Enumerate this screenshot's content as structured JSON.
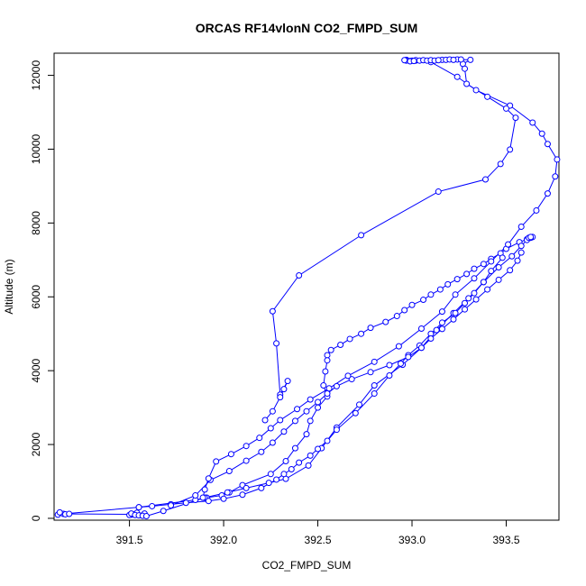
{
  "chart_data": {
    "type": "line",
    "title": "ORCAS RF14vlonN CO2_FMPD_SUM",
    "xlabel": "CO2_FMPD_SUM",
    "ylabel": "Altitude (m)",
    "xlim": [
      391.1,
      393.78
    ],
    "ylim": [
      -50,
      12600
    ],
    "xticks": [
      391.5,
      392.0,
      392.5,
      393.0,
      393.5
    ],
    "xtick_labels": [
      "391.5",
      "392.0",
      "392.5",
      "393.0",
      "393.5"
    ],
    "yticks": [
      0,
      2000,
      4000,
      6000,
      8000,
      10000,
      12000
    ],
    "ytick_labels": [
      "0",
      "2000",
      "4000",
      "6000",
      "8000",
      "10000",
      "12000"
    ],
    "color": "#0000ff",
    "marker": "open-circle",
    "series": [
      {
        "x": [
          393.64,
          393.63,
          393.61,
          393.57,
          393.5,
          393.47,
          393.42,
          393.38,
          393.33,
          393.29,
          393.24,
          393.19,
          393.15,
          393.1,
          393.06,
          393.0,
          392.96,
          392.92,
          392.86,
          392.78,
          392.73,
          392.67,
          392.62,
          392.57,
          392.55,
          392.55,
          392.54,
          392.53,
          392.55,
          392.5,
          392.46,
          392.44,
          392.38,
          392.33,
          392.25,
          392.1,
          392.03,
          391.99,
          391.91,
          391.85,
          391.55,
          391.15,
          391.12,
          391.13,
          391.16,
          391.18,
          391.52,
          391.58,
          391.54,
          391.51,
          391.5
        ],
        "y": [
          7620,
          7600,
          7560,
          7480,
          7300,
          7180,
          7030,
          6890,
          6760,
          6620,
          6480,
          6340,
          6200,
          6060,
          5920,
          5780,
          5640,
          5480,
          5320,
          5160,
          5000,
          4860,
          4700,
          4560,
          4420,
          4280,
          3980,
          3600,
          3300,
          3000,
          2640,
          2280,
          1900,
          1550,
          1200,
          900,
          700,
          620,
          560,
          500,
          300,
          120,
          100,
          160,
          110,
          120,
          110,
          130,
          150,
          100,
          90
        ]
      },
      {
        "x": [
          391.51,
          391.53,
          391.55,
          391.57,
          391.59,
          391.68,
          391.9,
          392.02,
          392.12,
          392.24,
          392.33,
          392.45,
          392.52,
          392.6,
          392.72,
          392.8,
          392.95,
          393.05,
          393.13,
          393.22,
          393.3,
          393.38,
          393.46,
          393.53,
          393.58,
          393.61,
          393.62,
          393.63
        ],
        "y": [
          130,
          90,
          80,
          70,
          60,
          200,
          560,
          700,
          820,
          960,
          1070,
          1430,
          1900,
          2460,
          3080,
          3600,
          4160,
          4620,
          5100,
          5560,
          5960,
          6400,
          6800,
          7100,
          7380,
          7540,
          7600,
          7620
        ]
      },
      {
        "x": [
          391.55,
          391.62,
          391.72,
          391.8,
          391.92,
          392.0,
          392.1,
          392.2,
          392.28,
          392.32,
          392.36,
          392.4,
          392.46,
          392.5,
          392.55,
          392.6,
          392.7,
          392.8,
          392.88,
          392.94,
          392.98,
          393.04,
          393.1,
          393.16,
          393.23,
          393.28,
          393.33,
          393.38,
          393.42,
          393.48
        ],
        "y": [
          300,
          330,
          380,
          420,
          470,
          530,
          640,
          820,
          1050,
          1200,
          1330,
          1510,
          1700,
          1880,
          2100,
          2400,
          2850,
          3380,
          3870,
          4190,
          4420,
          4680,
          5000,
          5300,
          5560,
          5830,
          6100,
          6400,
          6700,
          7060
        ]
      },
      {
        "x": [
          391.72,
          391.85,
          391.93,
          392.03,
          392.12,
          392.2,
          392.26,
          392.32,
          392.38,
          392.44,
          392.5,
          392.55,
          392.6,
          392.68,
          392.78,
          392.88,
          392.98,
          393.05,
          393.1,
          393.16,
          393.22,
          393.28,
          393.34,
          393.4,
          393.46,
          393.52,
          393.56,
          393.58
        ],
        "y": [
          350,
          620,
          1040,
          1280,
          1560,
          1800,
          2050,
          2350,
          2640,
          2900,
          3150,
          3380,
          3580,
          3770,
          3960,
          4150,
          4370,
          4620,
          4870,
          5130,
          5390,
          5660,
          5930,
          6200,
          6460,
          6720,
          6980,
          7200
        ]
      },
      {
        "x": [
          391.89,
          391.9,
          391.92,
          391.96,
          392.04,
          392.12,
          392.19,
          392.25,
          392.3,
          392.39,
          392.46,
          392.56,
          392.66,
          392.8,
          392.93,
          393.05,
          393.16,
          393.23,
          393.33,
          393.42,
          393.51,
          393.58,
          393.66,
          393.72,
          393.76,
          393.77,
          393.72,
          393.69,
          393.64,
          393.52,
          393.34,
          393.24,
          393.1,
          392.97
        ],
        "y": [
          560,
          780,
          1080,
          1540,
          1740,
          1960,
          2180,
          2440,
          2660,
          2960,
          3220,
          3520,
          3860,
          4240,
          4660,
          5140,
          5600,
          6060,
          6500,
          6960,
          7420,
          7900,
          8340,
          8800,
          9260,
          9720,
          10140,
          10420,
          10720,
          11180,
          11600,
          11960,
          12360,
          12420
        ]
      },
      {
        "x": [
          393.02,
          392.99,
          392.97,
          392.96,
          393.16,
          393.24,
          393.31,
          393.27,
          393.28,
          393.29,
          393.4,
          393.5,
          393.55,
          393.52,
          393.47,
          393.39,
          393.14,
          392.73,
          392.4,
          392.26,
          392.28,
          392.3,
          392.34,
          392.32,
          392.3,
          392.26,
          392.22
        ],
        "y": [
          12400,
          12390,
          12400,
          12410,
          12420,
          12430,
          12420,
          12310,
          12180,
          11770,
          11420,
          11100,
          10850,
          9990,
          9600,
          9180,
          8850,
          7670,
          6580,
          5610,
          4740,
          3350,
          3720,
          3500,
          3280,
          2900,
          2660
        ]
      }
    ],
    "top_cluster_points": [
      [
        393.0,
        12400
      ],
      [
        393.02,
        12410
      ],
      [
        393.04,
        12400
      ],
      [
        393.06,
        12410
      ],
      [
        393.08,
        12400
      ],
      [
        393.1,
        12410
      ],
      [
        393.12,
        12400
      ],
      [
        393.14,
        12410
      ],
      [
        393.18,
        12420
      ],
      [
        393.2,
        12430
      ],
      [
        393.22,
        12420
      ],
      [
        393.26,
        12430
      ],
      [
        392.99,
        12380
      ],
      [
        393.01,
        12390
      ]
    ]
  }
}
